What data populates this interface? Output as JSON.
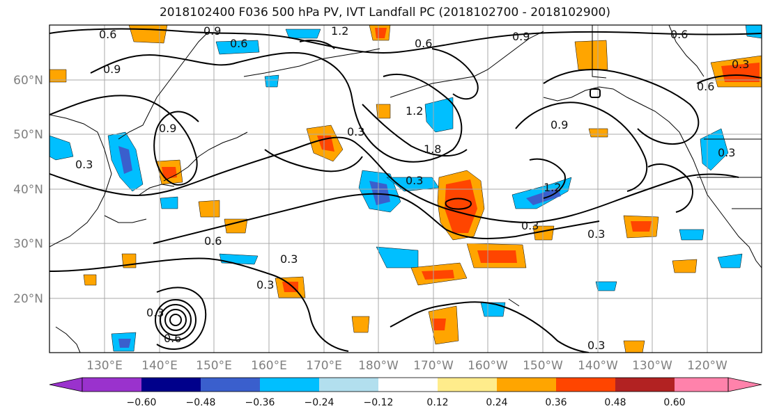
{
  "title": "2018102400 F036 500 hPa PV, IVT Landfall PC (2018102700 - 2018102900)",
  "map": {
    "lon_ticks": [
      "130°E",
      "140°E",
      "150°E",
      "160°E",
      "170°E",
      "180°W",
      "170°W",
      "160°W",
      "150°W",
      "140°W",
      "130°W",
      "120°W"
    ],
    "lat_ticks": [
      "60°N",
      "50°N",
      "40°N",
      "30°N",
      "20°N"
    ],
    "contour_labels": [
      "0.6",
      "0.9",
      "1.2",
      "0.6",
      "0.6",
      "0.9",
      "0.6",
      "0.9",
      "0.9",
      "0.6",
      "0.3",
      "1.2",
      "1.8",
      "0.3",
      "0.9",
      "0.3",
      "0.3",
      "1.2",
      "0.6",
      "0.3",
      "0.3",
      "0.3",
      "0.3",
      "0.3",
      "0.3",
      "0.6",
      "0.3"
    ],
    "colors": {
      "neg_060": "#9a32cd",
      "neg_048": "#00008b",
      "neg_036": "#3a5fcd",
      "neg_024": "#00bfff",
      "neg_012": "#b2dfee",
      "zero": "#ffffff",
      "pos_012": "#ffec8b",
      "pos_024": "#ffa500",
      "pos_036": "#ff4500",
      "pos_048": "#b22222",
      "pos_060": "#ff82ab"
    }
  },
  "colorbar": {
    "tick_labels": [
      "−0.60",
      "−0.48",
      "−0.36",
      "−0.24",
      "−0.12",
      "0.12",
      "0.24",
      "0.36",
      "0.48",
      "0.60"
    ],
    "bins": [
      "#9a32cd",
      "#00008b",
      "#3a5fcd",
      "#00bfff",
      "#b2dfee",
      "#ffffff",
      "#ffec8b",
      "#ffa500",
      "#ff4500",
      "#b22222",
      "#ff82ab"
    ]
  }
}
